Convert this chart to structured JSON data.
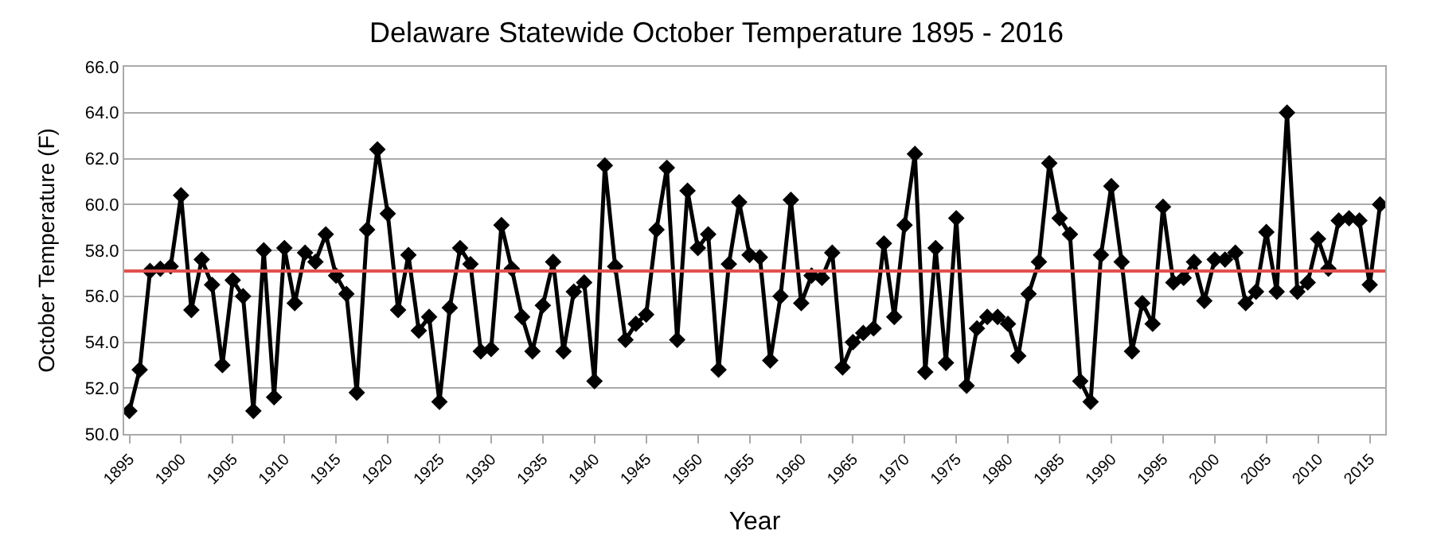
{
  "chart_data": {
    "type": "line",
    "title": "Delaware Statewide October Temperature 1895 - 2016",
    "xlabel": "Year",
    "ylabel": "October Temperature (F)",
    "x": [
      1895,
      1896,
      1897,
      1898,
      1899,
      1900,
      1901,
      1902,
      1903,
      1904,
      1905,
      1906,
      1907,
      1908,
      1909,
      1910,
      1911,
      1912,
      1913,
      1914,
      1915,
      1916,
      1917,
      1918,
      1919,
      1920,
      1921,
      1922,
      1923,
      1924,
      1925,
      1926,
      1927,
      1928,
      1929,
      1930,
      1931,
      1932,
      1933,
      1934,
      1935,
      1936,
      1937,
      1938,
      1939,
      1940,
      1941,
      1942,
      1943,
      1944,
      1945,
      1946,
      1947,
      1948,
      1949,
      1950,
      1951,
      1952,
      1953,
      1954,
      1955,
      1956,
      1957,
      1958,
      1959,
      1960,
      1961,
      1962,
      1963,
      1964,
      1965,
      1966,
      1967,
      1968,
      1969,
      1970,
      1971,
      1972,
      1973,
      1974,
      1975,
      1976,
      1977,
      1978,
      1979,
      1980,
      1981,
      1982,
      1983,
      1984,
      1985,
      1986,
      1987,
      1988,
      1989,
      1990,
      1991,
      1992,
      1993,
      1994,
      1995,
      1996,
      1997,
      1998,
      1999,
      2000,
      2001,
      2002,
      2003,
      2004,
      2005,
      2006,
      2007,
      2008,
      2009,
      2010,
      2011,
      2012,
      2013,
      2014,
      2015,
      2016
    ],
    "series": [
      {
        "color": "#000000",
        "values": [
          51.0,
          52.8,
          57.1,
          57.2,
          57.3,
          60.4,
          55.4,
          57.6,
          56.5,
          53.0,
          56.7,
          56.0,
          51.0,
          58.0,
          51.6,
          58.1,
          55.7,
          57.9,
          57.5,
          58.7,
          56.9,
          56.1,
          51.8,
          58.9,
          62.4,
          59.6,
          55.4,
          57.8,
          54.5,
          55.1,
          51.4,
          55.5,
          58.1,
          57.4,
          53.6,
          53.7,
          59.1,
          57.2,
          55.1,
          53.6,
          55.6,
          57.5,
          53.6,
          56.2,
          56.6,
          52.3,
          61.7,
          57.3,
          54.1,
          54.8,
          55.2,
          58.9,
          61.6,
          54.1,
          60.6,
          58.1,
          58.7,
          52.8,
          57.4,
          60.1,
          57.8,
          57.7,
          53.2,
          56.0,
          60.2,
          55.7,
          56.9,
          56.8,
          57.9,
          52.9,
          54.0,
          54.4,
          54.6,
          58.3,
          55.1,
          59.1,
          62.2,
          52.7,
          58.1,
          53.1,
          59.4,
          52.1,
          54.6,
          55.1,
          55.1,
          54.8,
          53.4,
          56.1,
          57.5,
          61.8,
          59.4,
          58.7,
          52.3,
          51.4,
          57.8,
          60.8,
          57.5,
          53.6,
          55.7,
          54.8,
          59.9,
          56.6,
          56.8,
          57.5,
          55.8,
          57.6,
          57.6,
          57.9,
          55.7,
          56.2,
          58.8,
          56.2,
          64.0,
          56.2,
          56.6,
          58.5,
          57.2,
          59.3,
          59.4,
          59.3,
          56.5,
          60.0
        ]
      }
    ],
    "xlim": [
      1894.5,
      2016.5
    ],
    "xticks": [
      1895,
      1900,
      1905,
      1910,
      1915,
      1920,
      1925,
      1930,
      1935,
      1940,
      1945,
      1950,
      1955,
      1960,
      1965,
      1970,
      1975,
      1980,
      1985,
      1990,
      1995,
      2000,
      2005,
      2010,
      2015
    ],
    "ylim": [
      50,
      66
    ],
    "yticks": [
      {
        "value": 50,
        "label": "50.0"
      },
      {
        "value": 52,
        "label": "52.0"
      },
      {
        "value": 54,
        "label": "54.0"
      },
      {
        "value": 56,
        "label": "56.0"
      },
      {
        "value": 58,
        "label": "58.0"
      },
      {
        "value": 60,
        "label": "60.0"
      },
      {
        "value": 62,
        "label": "62.0"
      },
      {
        "value": 64,
        "label": "64.0"
      },
      {
        "value": 66,
        "label": "66.0"
      }
    ],
    "ref_lines": [
      {
        "axis": "y",
        "value": 57.1,
        "color": "#e0504c"
      }
    ],
    "grid": "y",
    "marker": "diamond",
    "line_style": "solid"
  }
}
